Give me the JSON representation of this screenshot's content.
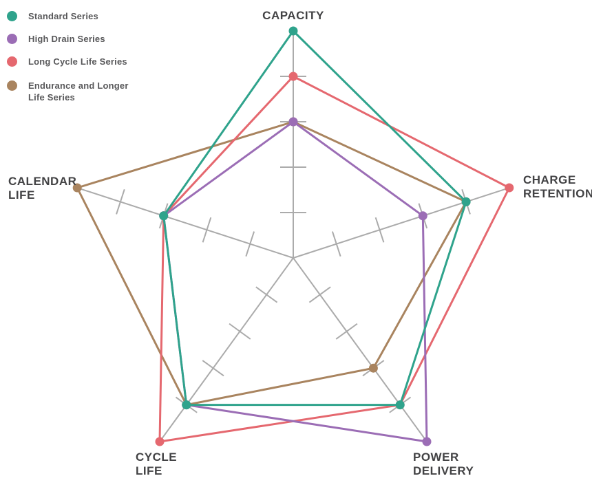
{
  "legend": {
    "items": [
      {
        "name": "standard-series",
        "label_lines": [
          "Standard Series"
        ],
        "color": "#2FA38C"
      },
      {
        "name": "high-drain-series",
        "label_lines": [
          "High Drain Series"
        ],
        "color": "#9B6DB5"
      },
      {
        "name": "long-cycle-life-series",
        "label_lines": [
          "Long Cycle Life Series"
        ],
        "color": "#E5686F"
      },
      {
        "name": "endurance-series",
        "label_lines": [
          "Endurance and Longer",
          "Life Series"
        ],
        "color": "#A9845F"
      }
    ]
  },
  "chart_data": {
    "type": "radar",
    "axes": [
      {
        "id": "capacity",
        "label_lines": [
          "CAPACITY"
        ]
      },
      {
        "id": "charge-retention",
        "label_lines": [
          "CHARGE",
          "RETENTION"
        ]
      },
      {
        "id": "power-delivery",
        "label_lines": [
          "POWER",
          "DELIVERY"
        ]
      },
      {
        "id": "cycle-life",
        "label_lines": [
          "CYCLE",
          "LIFE"
        ]
      },
      {
        "id": "calendar-life",
        "label_lines": [
          "CALENDAR",
          "LIFE"
        ]
      }
    ],
    "scale_min": 0,
    "scale_max": 5,
    "tick_rings": [
      1,
      2,
      3,
      4
    ],
    "grid_color": "#ABABAB",
    "legend_position": "top-left",
    "series": [
      {
        "name": "Standard Series",
        "color": "#2FA38C",
        "values": [
          5,
          4,
          4,
          4,
          3
        ]
      },
      {
        "name": "High Drain Series",
        "color": "#9B6DB5",
        "values": [
          3,
          3,
          5,
          4,
          3
        ]
      },
      {
        "name": "Long Cycle Life Series",
        "color": "#E5686F",
        "values": [
          4,
          5,
          4,
          5,
          3
        ]
      },
      {
        "name": "Endurance and Longer Life Series",
        "color": "#A9845F",
        "values": [
          3,
          4,
          3,
          4,
          5
        ]
      }
    ]
  },
  "colors": {
    "axis_label_text": "#424244",
    "legend_text": "#58585A",
    "grid": "#ABABAB",
    "background": "#FFFFFF"
  }
}
